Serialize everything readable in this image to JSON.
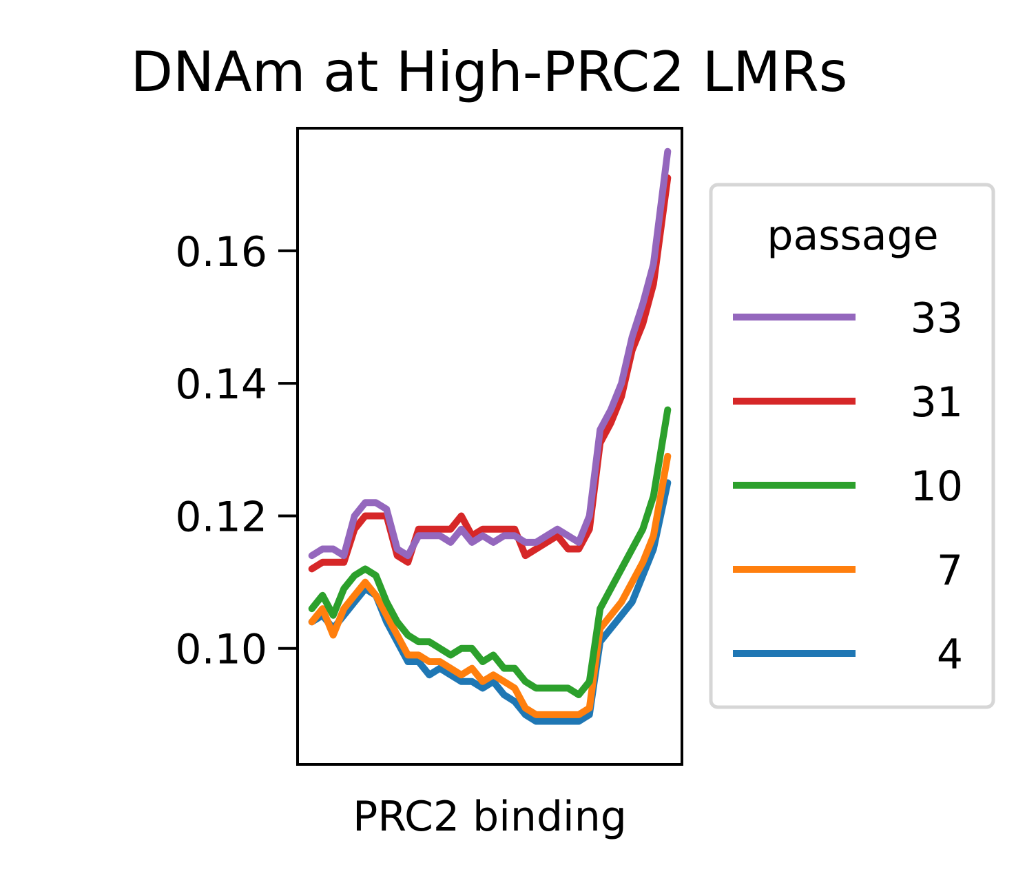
{
  "chart_data": {
    "type": "line",
    "title": "DNAm at High-PRC2 LMRs",
    "xlabel": "PRC2 binding",
    "ylabel": "",
    "x_ticks": false,
    "x": [
      0,
      0.03,
      0.06,
      0.09,
      0.12,
      0.15,
      0.18,
      0.21,
      0.24,
      0.27,
      0.3,
      0.33,
      0.36,
      0.39,
      0.42,
      0.45,
      0.48,
      0.51,
      0.54,
      0.57,
      0.6,
      0.63,
      0.66,
      0.69,
      0.72,
      0.75,
      0.78,
      0.81,
      0.84,
      0.87,
      0.9,
      0.93,
      0.96,
      1.0
    ],
    "xlim": [
      -0.04,
      1.04
    ],
    "ylim": [
      0.0825,
      0.1785
    ],
    "yticks": [
      0.1,
      0.12,
      0.14,
      0.16
    ],
    "ytick_labels": [
      "0.10",
      "0.12",
      "0.14",
      "0.16"
    ],
    "grid": false,
    "legend": {
      "title": "passage",
      "placement": "right-outside"
    },
    "series": [
      {
        "name": "4",
        "color": "#1f77b4",
        "values": [
          0.104,
          0.105,
          0.103,
          0.105,
          0.107,
          0.109,
          0.108,
          0.104,
          0.101,
          0.098,
          0.098,
          0.096,
          0.097,
          0.096,
          0.095,
          0.095,
          0.094,
          0.095,
          0.093,
          0.092,
          0.09,
          0.089,
          0.089,
          0.089,
          0.089,
          0.089,
          0.09,
          0.101,
          0.103,
          0.105,
          0.107,
          0.111,
          0.115,
          0.125
        ]
      },
      {
        "name": "7",
        "color": "#ff7f0e",
        "values": [
          0.104,
          0.106,
          0.102,
          0.106,
          0.108,
          0.11,
          0.108,
          0.105,
          0.102,
          0.099,
          0.099,
          0.098,
          0.098,
          0.097,
          0.096,
          0.097,
          0.095,
          0.096,
          0.095,
          0.094,
          0.091,
          0.09,
          0.09,
          0.09,
          0.09,
          0.09,
          0.091,
          0.103,
          0.105,
          0.107,
          0.11,
          0.113,
          0.117,
          0.129
        ]
      },
      {
        "name": "10",
        "color": "#2ca02c",
        "values": [
          0.106,
          0.108,
          0.105,
          0.109,
          0.111,
          0.112,
          0.111,
          0.107,
          0.104,
          0.102,
          0.101,
          0.101,
          0.1,
          0.099,
          0.1,
          0.1,
          0.098,
          0.099,
          0.097,
          0.097,
          0.095,
          0.094,
          0.094,
          0.094,
          0.094,
          0.093,
          0.095,
          0.106,
          0.109,
          0.112,
          0.115,
          0.118,
          0.123,
          0.136
        ]
      },
      {
        "name": "31",
        "color": "#d62728",
        "values": [
          0.112,
          0.113,
          0.113,
          0.113,
          0.118,
          0.12,
          0.12,
          0.12,
          0.114,
          0.113,
          0.118,
          0.118,
          0.118,
          0.118,
          0.12,
          0.117,
          0.118,
          0.118,
          0.118,
          0.118,
          0.114,
          0.115,
          0.116,
          0.117,
          0.115,
          0.115,
          0.118,
          0.131,
          0.134,
          0.138,
          0.145,
          0.149,
          0.155,
          0.171
        ]
      },
      {
        "name": "33",
        "color": "#9467bd",
        "values": [
          0.114,
          0.115,
          0.115,
          0.114,
          0.12,
          0.122,
          0.122,
          0.121,
          0.115,
          0.114,
          0.117,
          0.117,
          0.117,
          0.116,
          0.118,
          0.116,
          0.117,
          0.116,
          0.117,
          0.117,
          0.116,
          0.116,
          0.117,
          0.118,
          0.117,
          0.116,
          0.12,
          0.133,
          0.136,
          0.14,
          0.147,
          0.152,
          0.158,
          0.175
        ]
      }
    ],
    "legend_order": [
      "33",
      "31",
      "10",
      "7",
      "4"
    ]
  }
}
